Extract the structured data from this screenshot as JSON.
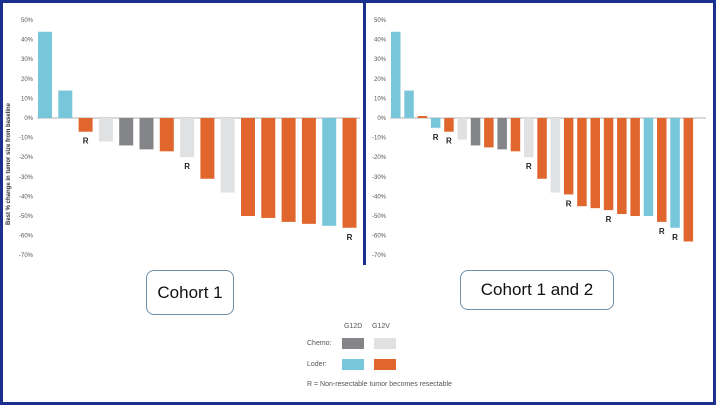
{
  "chart_data": [
    {
      "type": "bar",
      "title": "Cohort 1",
      "ylabel": "Best % change in tumor size from baseline",
      "ylim": [
        -70,
        50
      ],
      "yticks": [
        50,
        40,
        30,
        20,
        10,
        0,
        -10,
        -20,
        -30,
        -40,
        -50,
        -60,
        -70
      ],
      "ytick_labels": [
        "50%",
        "40%",
        "30%",
        "20%",
        "10%",
        "0%",
        "-10%",
        "-20%",
        "-30%",
        "-40%",
        "-50%",
        "-60%",
        "-70%"
      ],
      "bars": [
        {
          "value": 44,
          "group": "loder_g12d",
          "resectable": false
        },
        {
          "value": 14,
          "group": "loder_g12d",
          "resectable": false
        },
        {
          "value": -7,
          "group": "loder_g12v",
          "resectable": true
        },
        {
          "value": -12,
          "group": "chemo_g12v",
          "resectable": false
        },
        {
          "value": -14,
          "group": "chemo_g12d",
          "resectable": false
        },
        {
          "value": -16,
          "group": "chemo_g12d",
          "resectable": false
        },
        {
          "value": -17,
          "group": "loder_g12v",
          "resectable": false
        },
        {
          "value": -20,
          "group": "chemo_g12v",
          "resectable": true
        },
        {
          "value": -31,
          "group": "loder_g12v",
          "resectable": false
        },
        {
          "value": -38,
          "group": "chemo_g12v",
          "resectable": false
        },
        {
          "value": -50,
          "group": "loder_g12v",
          "resectable": false
        },
        {
          "value": -51,
          "group": "loder_g12v",
          "resectable": false
        },
        {
          "value": -53,
          "group": "loder_g12v",
          "resectable": false
        },
        {
          "value": -54,
          "group": "loder_g12v",
          "resectable": false
        },
        {
          "value": -55,
          "group": "loder_g12d",
          "resectable": false
        },
        {
          "value": -56,
          "group": "loder_g12v",
          "resectable": true
        }
      ]
    },
    {
      "type": "bar",
      "title": "Cohort 1 and 2",
      "ylim": [
        -70,
        50
      ],
      "yticks": [
        50,
        40,
        30,
        20,
        10,
        0,
        -10,
        -20,
        -30,
        -40,
        -50,
        -60,
        -70
      ],
      "ytick_labels": [
        "50%",
        "40%",
        "30%",
        "20%",
        "10%",
        "0%",
        "-10%",
        "-20%",
        "-30%",
        "-40%",
        "-50%",
        "-60%",
        "-70%"
      ],
      "bars": [
        {
          "value": 44,
          "group": "loder_g12d",
          "resectable": false
        },
        {
          "value": 14,
          "group": "loder_g12d",
          "resectable": false
        },
        {
          "value": 1,
          "group": "loder_g12v",
          "resectable": false
        },
        {
          "value": -5,
          "group": "loder_g12d",
          "resectable": true
        },
        {
          "value": -7,
          "group": "loder_g12v",
          "resectable": true
        },
        {
          "value": -11,
          "group": "chemo_g12v",
          "resectable": false
        },
        {
          "value": -14,
          "group": "chemo_g12d",
          "resectable": false
        },
        {
          "value": -15,
          "group": "loder_g12v",
          "resectable": false
        },
        {
          "value": -16,
          "group": "chemo_g12d",
          "resectable": false
        },
        {
          "value": -17,
          "group": "loder_g12v",
          "resectable": false
        },
        {
          "value": -20,
          "group": "chemo_g12v",
          "resectable": true
        },
        {
          "value": -31,
          "group": "loder_g12v",
          "resectable": false
        },
        {
          "value": -38,
          "group": "chemo_g12v",
          "resectable": false
        },
        {
          "value": -39,
          "group": "loder_g12v",
          "resectable": true
        },
        {
          "value": -45,
          "group": "loder_g12v",
          "resectable": false
        },
        {
          "value": -46,
          "group": "loder_g12v",
          "resectable": false
        },
        {
          "value": -47,
          "group": "loder_g12v",
          "resectable": true
        },
        {
          "value": -49,
          "group": "loder_g12v",
          "resectable": false
        },
        {
          "value": -50,
          "group": "loder_g12v",
          "resectable": false
        },
        {
          "value": -50,
          "group": "loder_g12d",
          "resectable": false
        },
        {
          "value": -53,
          "group": "loder_g12v",
          "resectable": true
        },
        {
          "value": -56,
          "group": "loder_g12d",
          "resectable": true
        },
        {
          "value": -63,
          "group": "loder_g12v",
          "resectable": false
        }
      ]
    }
  ],
  "resectable_mark": "R",
  "cohort1_label": "Cohort 1",
  "cohort2_label": "Cohort 1 and 2",
  "legend": {
    "col_g12d": "G12D",
    "col_g12v": "G12V",
    "row_chemo": "Chemo:",
    "row_loder": "Loder:",
    "footnote": "R = Non-resectable tumor becomes resectable"
  },
  "colors": {
    "chemo_g12d": "#848588",
    "chemo_g12v": "#e0e1e3",
    "loder_g12d": "#78c6da",
    "loder_g12v": "#e0662e",
    "frame": "#1b2f8f"
  }
}
